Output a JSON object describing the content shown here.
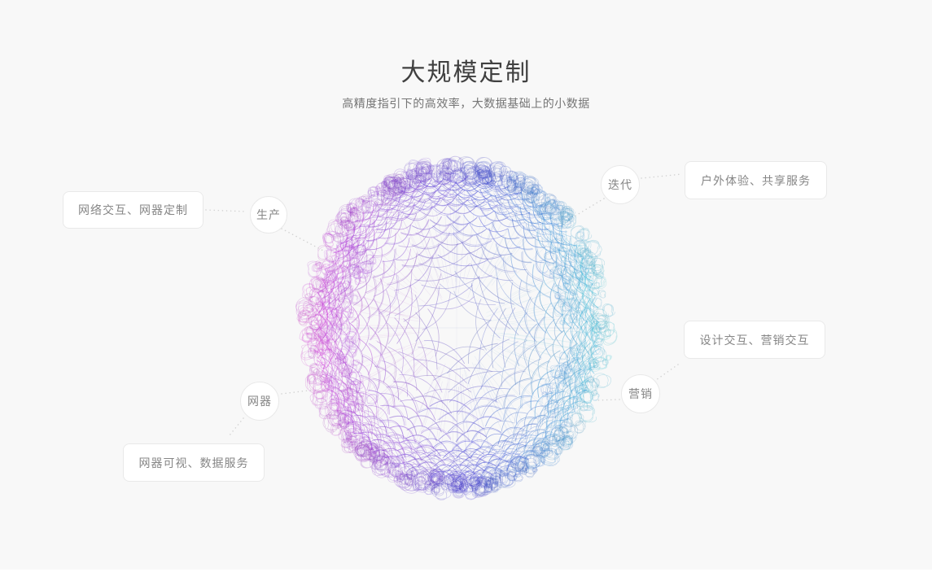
{
  "page": {
    "title": "大规模定制",
    "subtitle": "高精度指引下的高效率，大数据基础上的小数据"
  },
  "diagram": {
    "nodes": [
      {
        "id": "production",
        "label": "生产"
      },
      {
        "id": "iteration",
        "label": "迭代"
      },
      {
        "id": "marketing",
        "label": "营销"
      },
      {
        "id": "smart-device",
        "label": "网器"
      }
    ],
    "cards": [
      {
        "id": "network-interaction-customization",
        "label": "网络交互、网器定制"
      },
      {
        "id": "outdoor-experience-sharing",
        "label": "户外体验、共享服务"
      },
      {
        "id": "design-marketing-interaction",
        "label": "设计交互、营销交互"
      },
      {
        "id": "device-visualization-data-service",
        "label": "网器可视、数据服务"
      }
    ],
    "connections": [
      {
        "from": "网络交互、网器定制",
        "to": "生产"
      },
      {
        "from": "生产",
        "to": "sphere"
      },
      {
        "from": "迭代",
        "to": "户外体验、共享服务"
      },
      {
        "from": "迭代",
        "to": "sphere"
      },
      {
        "from": "设计交互、营销交互",
        "to": "营销"
      },
      {
        "from": "营销",
        "to": "sphere"
      },
      {
        "from": "网器",
        "to": "sphere"
      },
      {
        "from": "网器",
        "to": "网器可视、数据服务"
      }
    ]
  },
  "colors": {
    "background": "#f8f8f8",
    "card_bg": "#ffffff",
    "card_border": "#e9e9e9",
    "card_text": "#868686",
    "title_text": "#404040",
    "subtitle_text": "#757575",
    "connector_dot": "#d2d2d2",
    "sphere_palette": {
      "left": "#b455c2",
      "center": "#5b63c6",
      "right": "#49d2e4"
    }
  }
}
